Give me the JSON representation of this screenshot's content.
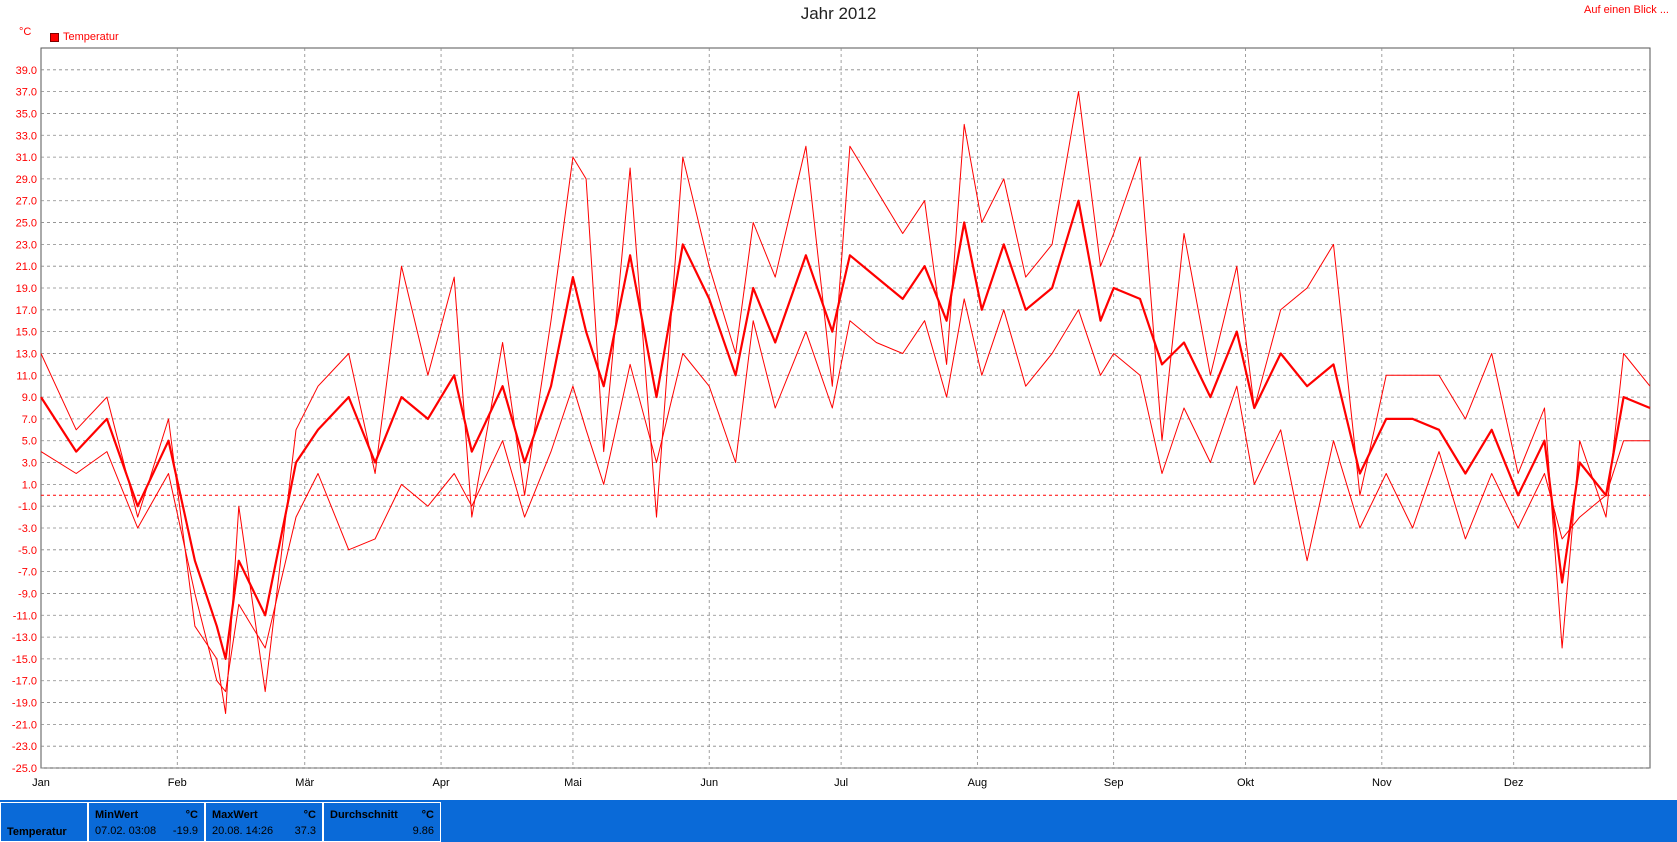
{
  "title": "Jahr 2012",
  "top_link": "Auf einen Blick ...",
  "unit": "°C",
  "legend": "Temperatur",
  "colors": {
    "series": "#ff0000",
    "grid": "#888888",
    "statsbar": "#0a6ad8"
  },
  "chart_data": {
    "type": "line",
    "title": "Jahr 2012",
    "ylabel": "°C",
    "ylim": [
      -25,
      41
    ],
    "y_ticks": [
      "39.0",
      "37.0",
      "35.0",
      "33.0",
      "31.0",
      "29.0",
      "27.0",
      "25.0",
      "23.0",
      "21.0",
      "19.0",
      "17.0",
      "15.0",
      "13.0",
      "11.0",
      "9.0",
      "7.0",
      "5.0",
      "3.0",
      "1.0",
      "-1.0",
      "-3.0",
      "-5.0",
      "-7.0",
      "-9.0",
      "-11.0",
      "-13.0",
      "-15.0",
      "-17.0",
      "-19.0",
      "-21.0",
      "-23.0",
      "-25.0"
    ],
    "x_ticks": [
      "Jan",
      "Feb",
      "Mär",
      "Apr",
      "Mai",
      "Jun",
      "Jul",
      "Aug",
      "Sep",
      "Okt",
      "Nov",
      "Dez"
    ],
    "x_tick_days": [
      0,
      31,
      60,
      91,
      121,
      152,
      182,
      213,
      244,
      274,
      305,
      335
    ],
    "xlim": [
      0,
      366
    ],
    "zero_line": 0,
    "grid": true,
    "legend_position": "top-left",
    "series": [
      {
        "name": "Temperatur",
        "role": "max",
        "x": [
          0,
          8,
          15,
          22,
          29,
          35,
          40,
          42,
          45,
          51,
          58,
          63,
          70,
          76,
          82,
          88,
          94,
          98,
          105,
          110,
          116,
          121,
          124,
          128,
          134,
          140,
          146,
          152,
          158,
          162,
          167,
          174,
          180,
          184,
          190,
          196,
          201,
          206,
          210,
          214,
          219,
          224,
          230,
          236,
          241,
          244,
          250,
          255,
          260,
          266,
          272,
          276,
          282,
          288,
          294,
          300,
          306,
          312,
          318,
          324,
          330,
          336,
          342,
          346,
          350,
          356,
          360,
          366
        ],
        "values": [
          13,
          6,
          9,
          -2,
          7,
          -12,
          -15,
          -20,
          -1,
          -18,
          6,
          10,
          13,
          2,
          21,
          11,
          20,
          -2,
          14,
          0,
          16,
          31,
          29,
          4,
          30,
          -2,
          31,
          21,
          13,
          25,
          20,
          32,
          10,
          32,
          28,
          24,
          27,
          12,
          34,
          25,
          29,
          20,
          23,
          37,
          21,
          24,
          31,
          5,
          24,
          11,
          21,
          8,
          17,
          19,
          23,
          0,
          11,
          11,
          11,
          7,
          13,
          2,
          8,
          -14,
          5,
          -2,
          13,
          10
        ]
      },
      {
        "name": "Temperatur",
        "role": "mean",
        "x": [
          0,
          8,
          15,
          22,
          29,
          35,
          40,
          42,
          45,
          51,
          58,
          63,
          70,
          76,
          82,
          88,
          94,
          98,
          105,
          110,
          116,
          121,
          124,
          128,
          134,
          140,
          146,
          152,
          158,
          162,
          167,
          174,
          180,
          184,
          190,
          196,
          201,
          206,
          210,
          214,
          219,
          224,
          230,
          236,
          241,
          244,
          250,
          255,
          260,
          266,
          272,
          276,
          282,
          288,
          294,
          300,
          306,
          312,
          318,
          324,
          330,
          336,
          342,
          346,
          350,
          356,
          360,
          366
        ],
        "values": [
          9,
          4,
          7,
          -1,
          5,
          -6,
          -12,
          -15,
          -6,
          -11,
          3,
          6,
          9,
          3,
          9,
          7,
          11,
          4,
          10,
          3,
          10,
          20,
          15,
          10,
          22,
          9,
          23,
          18,
          11,
          19,
          14,
          22,
          15,
          22,
          20,
          18,
          21,
          16,
          25,
          17,
          23,
          17,
          19,
          27,
          16,
          19,
          18,
          12,
          14,
          9,
          15,
          8,
          13,
          10,
          12,
          2,
          7,
          7,
          6,
          2,
          6,
          0,
          5,
          -8,
          3,
          0,
          9,
          8
        ]
      },
      {
        "name": "Temperatur",
        "role": "min",
        "x": [
          0,
          8,
          15,
          22,
          29,
          35,
          40,
          42,
          45,
          51,
          58,
          63,
          70,
          76,
          82,
          88,
          94,
          98,
          105,
          110,
          116,
          121,
          124,
          128,
          134,
          140,
          146,
          152,
          158,
          162,
          167,
          174,
          180,
          184,
          190,
          196,
          201,
          206,
          210,
          214,
          219,
          224,
          230,
          236,
          241,
          244,
          250,
          255,
          260,
          266,
          272,
          276,
          282,
          288,
          294,
          300,
          306,
          312,
          318,
          324,
          330,
          336,
          342,
          346,
          350,
          356,
          360,
          366
        ],
        "values": [
          4,
          2,
          4,
          -3,
          2,
          -9,
          -17,
          -18,
          -10,
          -14,
          -2,
          2,
          -5,
          -4,
          1,
          -1,
          2,
          -1,
          5,
          -2,
          4,
          10,
          6,
          1,
          12,
          3,
          13,
          10,
          3,
          16,
          8,
          15,
          8,
          16,
          14,
          13,
          16,
          9,
          18,
          11,
          17,
          10,
          13,
          17,
          11,
          13,
          11,
          2,
          8,
          3,
          10,
          1,
          6,
          -6,
          5,
          -3,
          2,
          -3,
          4,
          -4,
          2,
          -3,
          2,
          -4,
          -2,
          0,
          5,
          5
        ]
      }
    ]
  },
  "stats": {
    "series_name": "Temperatur",
    "min": {
      "label": "MinWert",
      "unit": "°C",
      "time": "07.02.  03:08",
      "value": "-19.9"
    },
    "max": {
      "label": "MaxWert",
      "unit": "°C",
      "time": "20.08.  14:26",
      "value": "37.3"
    },
    "avg": {
      "label": "Durchschnitt",
      "unit": "°C",
      "time": "",
      "value": "9.86"
    }
  }
}
